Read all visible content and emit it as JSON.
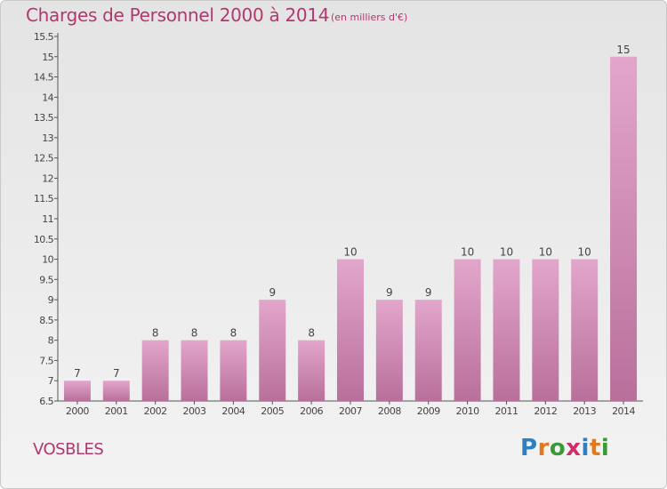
{
  "header": {
    "title": "Charges de Personnel 2000 à 2014",
    "subtitle": "(en milliers d'€)"
  },
  "footer": {
    "commune": "VOSBLES",
    "logo_text": "Proxiti"
  },
  "colors": {
    "accent": "#b0386e",
    "bar_top": "#e3a6cb",
    "bar_bottom": "#b8709b",
    "logo_letters": [
      "#2f7fc0",
      "#e07a1f",
      "#3a9a3a",
      "#d12c6b",
      "#2f7fc0",
      "#e07a1f",
      "#3a9a3a"
    ]
  },
  "chart_data": {
    "type": "bar",
    "title": "Charges de Personnel 2000 à 2014",
    "subtitle": "(en milliers d'€)",
    "categories": [
      "2000",
      "2001",
      "2002",
      "2003",
      "2004",
      "2005",
      "2006",
      "2007",
      "2008",
      "2009",
      "2010",
      "2011",
      "2012",
      "2013",
      "2014"
    ],
    "values": [
      7,
      7,
      8,
      8,
      8,
      9,
      8,
      10,
      9,
      9,
      10,
      10,
      10,
      10,
      15
    ],
    "data_labels": [
      "7",
      "7",
      "8",
      "8",
      "8",
      "9",
      "8",
      "10",
      "9",
      "9",
      "10",
      "10",
      "10",
      "10",
      "15"
    ],
    "xlabel": "",
    "ylabel": "",
    "ylim": [
      6.5,
      15.5
    ],
    "yticks": [
      "6.5",
      "7",
      "7.5",
      "8",
      "8.5",
      "9",
      "9.5",
      "10",
      "10.5",
      "11",
      "11.5",
      "12",
      "12.5",
      "13",
      "13.5",
      "14",
      "14.5",
      "15",
      "15.5"
    ],
    "grid": false,
    "legend": "none"
  }
}
